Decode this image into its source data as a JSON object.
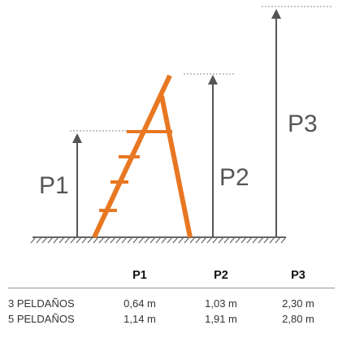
{
  "diagram": {
    "labels": {
      "p1": "P1",
      "p2": "P2",
      "p3": "P3"
    },
    "colors": {
      "ladder": "#e87722",
      "arrow": "#555555",
      "ground": "#666666",
      "guide": "#888888"
    }
  },
  "table": {
    "headers": [
      "",
      "P1",
      "P2",
      "P3"
    ],
    "rows": [
      {
        "label": "3 PELDAÑOS",
        "p1": "0,64 m",
        "p2": "1,03 m",
        "p3": "2,30 m"
      },
      {
        "label": "5 PELDAÑOS",
        "p1": "1,14 m",
        "p2": "1,91 m",
        "p3": "2,80 m"
      }
    ]
  }
}
